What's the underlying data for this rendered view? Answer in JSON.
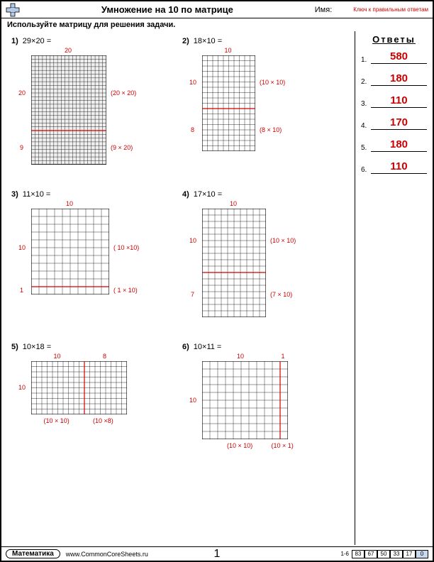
{
  "header": {
    "title": "Умножение на 10 по матрице",
    "name_label": "Имя:",
    "answer_key_label": "Ключ к правильным ответам"
  },
  "instruction": "Используйте матрицу для решения задачи.",
  "answers": {
    "title": "Ответы",
    "items": [
      {
        "n": "1.",
        "v": "580"
      },
      {
        "n": "2.",
        "v": "180"
      },
      {
        "n": "3.",
        "v": "110"
      },
      {
        "n": "4.",
        "v": "170"
      },
      {
        "n": "5.",
        "v": "180"
      },
      {
        "n": "6.",
        "v": "110"
      }
    ]
  },
  "problems": [
    {
      "num": "1)",
      "expr": "29×20 =",
      "cols": 20,
      "rows": 29,
      "cell": 5.3,
      "topLabel": "20",
      "hsplit": {
        "at": 20,
        "leftLabel": "20",
        "rightLabel": "(20 × 20)",
        "leftLabel2": "9",
        "rightLabel2": "(9 × 20)"
      },
      "fillAll": true
    },
    {
      "num": "2)",
      "expr": "18×10 =",
      "cols": 10,
      "rows": 18,
      "cell": 7.5,
      "topLabel": "10",
      "hsplit": {
        "at": 10,
        "leftLabel": "10",
        "rightLabel": "(10 × 10)",
        "leftLabel2": "8",
        "rightLabel2": "(8 × 10)"
      },
      "fillAll": false
    },
    {
      "num": "3)",
      "expr": "11×10 =",
      "cols": 10,
      "rows": 11,
      "cell": 11,
      "topLabel": "10",
      "hsplit": {
        "at": 10,
        "leftLabel": "10",
        "rightLabel": "( 10 ×10)",
        "leftLabel2": "1",
        "rightLabel2": "( 1 × 10)"
      },
      "fillAll": false
    },
    {
      "num": "4)",
      "expr": "17×10 =",
      "cols": 10,
      "rows": 17,
      "cell": 9,
      "topLabel": "10",
      "hsplit": {
        "at": 10,
        "leftLabel": "10",
        "rightLabel": "(10 × 10)",
        "leftLabel2": "7",
        "rightLabel2": "(7 × 10)"
      },
      "fillAll": false
    },
    {
      "num": "5)",
      "expr": "10×18 =",
      "cols": 18,
      "rows": 10,
      "cell": 7.5,
      "vsplit": {
        "at": 10,
        "topLeft": "10",
        "topRight": "8",
        "leftSide": "10",
        "botLeft": "(10 × 10)",
        "botRight": "(10 ×8)"
      },
      "fillAll": false
    },
    {
      "num": "6)",
      "expr": "10×11 =",
      "cols": 11,
      "rows": 10,
      "cell": 11,
      "vsplit": {
        "at": 10,
        "topLeft": "10",
        "topRight": "1",
        "leftSide": "10",
        "botLeft": "(10 × 10)",
        "botRight": "(10 × 1)"
      },
      "fillAll": false
    }
  ],
  "footer": {
    "subject": "Математика",
    "url": "www.CommonCoreSheets.ru",
    "page": "1",
    "range": "1-6",
    "scores": [
      "83",
      "67",
      "50",
      "33",
      "17",
      "0"
    ]
  },
  "colors": {
    "accent": "#cc0000",
    "grid_fill": "#eeeeee"
  }
}
